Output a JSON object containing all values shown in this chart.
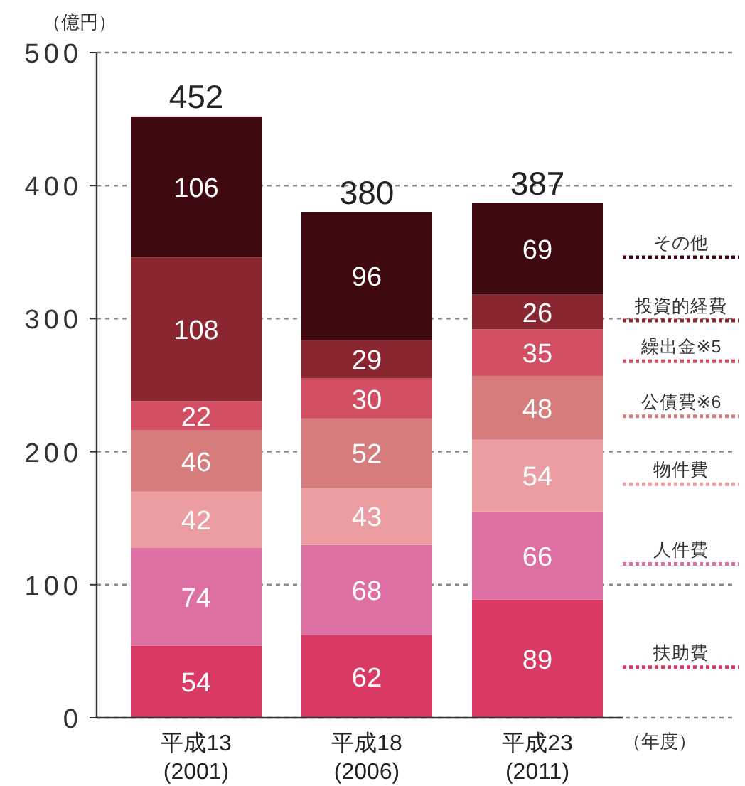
{
  "chart_data": {
    "type": "bar",
    "stacked": true,
    "ylabel": "（億円）",
    "xlabel": "（年度）",
    "categories": [
      "平成13\n(2001)",
      "平成18\n(2006)",
      "平成23\n(2011)"
    ],
    "series": [
      {
        "name": "扶助費",
        "color": "#d83a64",
        "values": [
          54,
          62,
          89
        ]
      },
      {
        "name": "人件費",
        "color": "#de6fa2",
        "values": [
          74,
          68,
          66
        ]
      },
      {
        "name": "物件費",
        "color": "#eb9da2",
        "values": [
          42,
          43,
          54
        ]
      },
      {
        "name": "公債費※6",
        "color": "#d67c7d",
        "values": [
          46,
          52,
          48
        ]
      },
      {
        "name": "繰出金※5",
        "color": "#d24f63",
        "values": [
          22,
          30,
          35
        ]
      },
      {
        "name": "投資的経費",
        "color": "#892630",
        "values": [
          108,
          29,
          26
        ]
      },
      {
        "name": "その他",
        "color": "#3e0a10",
        "values": [
          106,
          96,
          69
        ]
      }
    ],
    "totals": [
      "452",
      "380",
      "387"
    ],
    "data_labels": true,
    "ylim": [
      0,
      500
    ],
    "yticks": [
      0,
      100,
      200,
      300,
      400,
      500
    ],
    "grid": "y",
    "legend": "right"
  }
}
